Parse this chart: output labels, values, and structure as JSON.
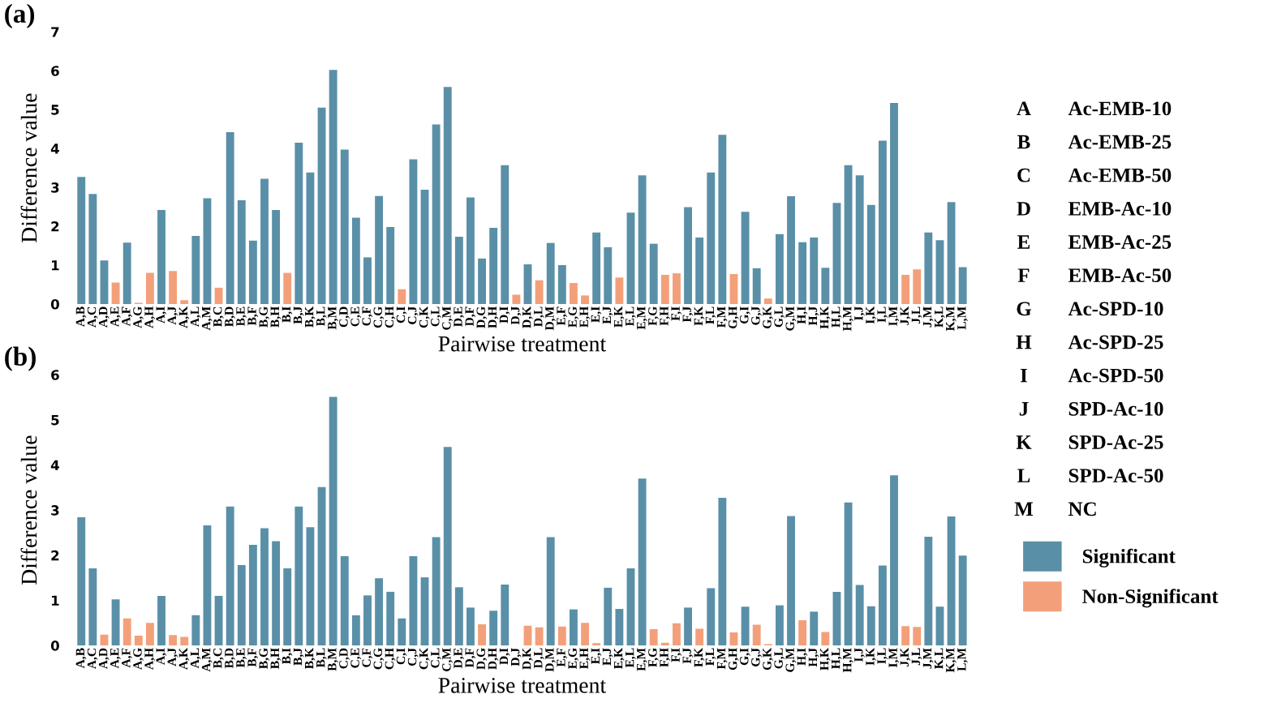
{
  "chart_data": [
    {
      "type": "bar",
      "title": "(a)",
      "xlabel": "Pairwise treatment",
      "ylabel": "Difference value",
      "categories": [
        "A,B",
        "A,C",
        "A,D",
        "A,E",
        "A,F",
        "A,G",
        "A,H",
        "A,I",
        "A,J",
        "A,K",
        "A,L",
        "A,M",
        "B,C",
        "B,D",
        "B,E",
        "B,F",
        "B,G",
        "B,H",
        "B,I",
        "B,J",
        "B,K",
        "B,L",
        "B,M",
        "C,D",
        "C,E",
        "C,F",
        "C,G",
        "C,H",
        "C,I",
        "C,J",
        "C,K",
        "C,L",
        "C,M",
        "D,E",
        "D,F",
        "D,G",
        "D,H",
        "D,I",
        "D,J",
        "D,K",
        "D,L",
        "D,M",
        "E,F",
        "E,G",
        "E,H",
        "E,I",
        "E,J",
        "E,K",
        "E,L",
        "E,M",
        "F,G",
        "F,H",
        "F,I",
        "F,J",
        "F,K",
        "F,L",
        "F,M",
        "G,H",
        "G,I",
        "G,J",
        "G,K",
        "G,L",
        "G,M",
        "H,I",
        "H,J",
        "H,K",
        "H,L",
        "H,M",
        "I,J",
        "I,K",
        "I,L",
        "I,M",
        "J,K",
        "J,L",
        "J,M",
        "K,L",
        "K,M",
        "L,M"
      ],
      "series": [
        {
          "color": "#5a8fa8",
          "values": [
            3.27,
            2.83,
            1.12,
            null,
            1.58,
            null,
            null,
            2.42,
            null,
            null,
            1.75,
            2.72,
            null,
            4.42,
            2.67,
            1.63,
            3.22,
            2.42,
            null,
            4.15,
            3.38,
            5.05,
            6.02,
            3.97,
            2.22,
            1.2,
            2.78,
            1.98,
            null,
            3.72,
            2.94,
            4.62,
            5.58,
            1.73,
            2.74,
            1.17,
            1.96,
            3.57,
            null,
            1.02,
            null,
            1.57,
            1.0,
            null,
            null,
            1.84,
            1.46,
            null,
            2.35,
            3.31,
            1.55,
            null,
            null,
            2.49,
            1.71,
            3.38,
            4.35,
            null,
            2.37,
            0.92,
            null,
            1.8,
            2.77,
            1.59,
            1.71,
            0.93,
            2.6,
            3.57,
            3.31,
            2.55,
            4.2,
            5.17,
            null,
            null,
            1.84,
            1.64,
            2.62,
            0.95
          ]
        },
        {
          "color": "#f3a07a",
          "values": [
            null,
            null,
            null,
            0.55,
            null,
            0.03,
            0.8,
            null,
            0.85,
            0.1,
            null,
            null,
            0.42,
            null,
            null,
            null,
            null,
            null,
            0.8,
            null,
            null,
            null,
            null,
            null,
            null,
            null,
            null,
            null,
            0.38,
            null,
            null,
            null,
            null,
            null,
            null,
            null,
            null,
            null,
            0.24,
            null,
            0.61,
            null,
            null,
            0.54,
            0.22,
            null,
            null,
            0.68,
            null,
            null,
            null,
            0.75,
            0.79,
            null,
            null,
            null,
            null,
            0.77,
            null,
            null,
            0.14,
            null,
            null,
            null,
            null,
            null,
            null,
            null,
            null,
            null,
            null,
            null,
            0.75,
            0.89,
            null,
            null,
            null,
            null
          ]
        }
      ],
      "ylim": [
        0,
        7
      ],
      "yticks": [
        0,
        1,
        2,
        3,
        4,
        5,
        6,
        7
      ],
      "annotations": [
        "A",
        "Ac-EMB-10",
        "B",
        "Ac-EMB-25",
        "C",
        "Ac-EMB-50",
        "D",
        "EMB-Ac-10",
        "E",
        "EMB-Ac-25",
        "F",
        "EMB-Ac-50",
        "G",
        "Ac-SPD-10",
        "H",
        "Ac-SPD-25",
        "I",
        "Ac-SPD-50",
        "J",
        "SPD-Ac-10",
        "K",
        "SPD-Ac-25",
        "L",
        "SPD-Ac-50",
        "M",
        "NC"
      ]
    },
    {
      "type": "bar",
      "title": "(b)",
      "xlabel": "Pairwise treatment",
      "ylabel": "Difference value",
      "categories": [
        "A,B",
        "A,C",
        "A,D",
        "A,E",
        "A,F",
        "A,G",
        "A,H",
        "A,I",
        "A,J",
        "A,K",
        "A,L",
        "A,M",
        "B,C",
        "B,D",
        "B,E",
        "B,F",
        "B,G",
        "B,H",
        "B,I",
        "B,J",
        "B,K",
        "B,L",
        "B,M",
        "C,D",
        "C,E",
        "C,F",
        "C,G",
        "C,H",
        "C,I",
        "C,J",
        "C,K",
        "C,L",
        "C,M",
        "D,E",
        "D,F",
        "D,G",
        "D,H",
        "D,I",
        "D,J",
        "D,K",
        "D,L",
        "D,M",
        "E,F",
        "E,G",
        "E,H",
        "E,I",
        "E,J",
        "E,K",
        "E,L",
        "E,M",
        "F,G",
        "F,H",
        "F,I",
        "F,J",
        "F,K",
        "F,L",
        "F,M",
        "G,H",
        "G,I",
        "G,J",
        "G,K",
        "G,L",
        "G,M",
        "H,I",
        "H,J",
        "H,K",
        "H,L",
        "H,M",
        "I,J",
        "I,K",
        "I,L",
        "I,M",
        "J,K",
        "J,L",
        "J,M",
        "K,L",
        "K,M",
        "L,M"
      ],
      "series": [
        {
          "name": "Significant",
          "color": "#5a8fa8",
          "values": [
            2.84,
            1.71,
            null,
            1.02,
            null,
            null,
            null,
            1.1,
            null,
            null,
            0.67,
            2.66,
            1.1,
            3.08,
            1.78,
            2.23,
            2.6,
            2.31,
            1.71,
            3.08,
            2.62,
            3.51,
            5.51,
            1.98,
            0.67,
            1.11,
            1.49,
            1.19,
            0.6,
            1.98,
            1.51,
            2.4,
            4.4,
            1.29,
            0.84,
            null,
            0.77,
            1.35,
            null,
            null,
            null,
            2.4,
            null,
            0.8,
            null,
            null,
            1.28,
            0.81,
            1.71,
            3.7,
            null,
            null,
            null,
            0.84,
            null,
            1.27,
            3.27,
            null,
            0.86,
            null,
            null,
            0.89,
            2.87,
            null,
            0.75,
            null,
            1.19,
            3.17,
            1.34,
            0.87,
            1.77,
            3.77,
            null,
            null,
            2.41,
            0.86,
            2.86,
            1.99
          ]
        },
        {
          "name": "Non-Significant",
          "color": "#f3a07a",
          "values": [
            null,
            null,
            0.24,
            null,
            0.6,
            0.22,
            0.5,
            null,
            0.23,
            0.19,
            null,
            null,
            null,
            null,
            null,
            null,
            null,
            null,
            null,
            null,
            null,
            null,
            null,
            null,
            null,
            null,
            null,
            null,
            null,
            null,
            null,
            null,
            null,
            null,
            null,
            0.47,
            null,
            null,
            0,
            0.44,
            0.4,
            null,
            0.42,
            null,
            0.5,
            0.05,
            null,
            null,
            null,
            null,
            0.36,
            0.06,
            0.49,
            null,
            0.37,
            null,
            null,
            0.29,
            null,
            0.46,
            0.03,
            null,
            null,
            0.56,
            null,
            0.3,
            null,
            null,
            null,
            null,
            null,
            null,
            0.43,
            0.41,
            null,
            null,
            null,
            null
          ]
        }
      ],
      "ylim": [
        0,
        6
      ],
      "yticks": [
        0,
        1,
        2,
        3,
        4,
        5,
        6
      ],
      "legend": "right"
    }
  ]
}
